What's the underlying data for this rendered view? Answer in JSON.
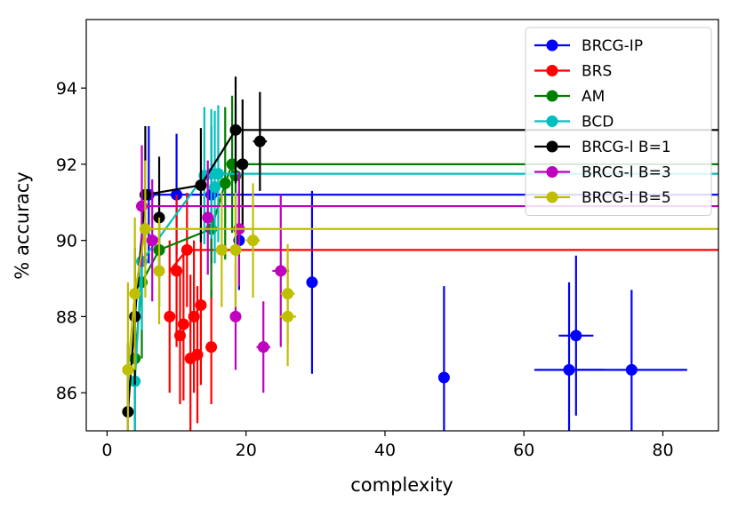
{
  "chart_data": {
    "type": "scatter",
    "xlabel": "complexity",
    "ylabel": "% accuracy",
    "xlim": [
      -3,
      88
    ],
    "ylim": [
      85,
      95.8
    ],
    "xticks": [
      0,
      20,
      40,
      60,
      80
    ],
    "yticks": [
      86,
      88,
      90,
      92,
      94
    ],
    "legend_position": "top-right",
    "series": [
      {
        "name": "BRCG-IP",
        "color": "#0000ff",
        "front": [
          [
            6,
            91.2
          ],
          [
            10,
            91.2
          ],
          [
            15,
            91.2
          ]
        ],
        "points": [
          {
            "x": 6.0,
            "y": 91.2,
            "xerr": 0.5,
            "yerr": 1.8
          },
          {
            "x": 10.0,
            "y": 91.2,
            "xerr": 0.8,
            "yerr": 1.6
          },
          {
            "x": 15.0,
            "y": 91.2,
            "xerr": 0.8,
            "yerr": 1.8
          },
          {
            "x": 19.0,
            "y": 90.0,
            "xerr": 0.5,
            "yerr": 1.3
          },
          {
            "x": 29.5,
            "y": 88.9,
            "xerr": 0.8,
            "yerr": 2.4
          },
          {
            "x": 48.5,
            "y": 86.4,
            "xerr": 0.8,
            "yerr": 2.4
          },
          {
            "x": 66.5,
            "y": 86.6,
            "xerr": 5.0,
            "yerr": 2.3
          },
          {
            "x": 67.5,
            "y": 87.5,
            "xerr": 2.5,
            "yerr": 2.1
          },
          {
            "x": 75.5,
            "y": 86.6,
            "xerr": 8.0,
            "yerr": 2.1
          }
        ]
      },
      {
        "name": "BRS",
        "color": "#ff0000",
        "front": [
          [
            9,
            89.2
          ],
          [
            11.5,
            89.75
          ]
        ],
        "points": [
          {
            "x": 9.0,
            "y": 88.0,
            "xerr": 0.5,
            "yerr": 2.0
          },
          {
            "x": 10.0,
            "y": 89.2,
            "xerr": 0.5,
            "yerr": 2.0
          },
          {
            "x": 10.5,
            "y": 87.5,
            "xerr": 0.5,
            "yerr": 1.8
          },
          {
            "x": 11.0,
            "y": 87.8,
            "xerr": 0.5,
            "yerr": 2.0
          },
          {
            "x": 11.5,
            "y": 89.75,
            "xerr": 0.8,
            "yerr": 1.5
          },
          {
            "x": 12.0,
            "y": 86.9,
            "xerr": 0.5,
            "yerr": 2.2
          },
          {
            "x": 12.5,
            "y": 88.0,
            "xerr": 0.5,
            "yerr": 2.0
          },
          {
            "x": 13.0,
            "y": 87.0,
            "xerr": 0.5,
            "yerr": 1.8
          },
          {
            "x": 13.5,
            "y": 88.3,
            "xerr": 0.5,
            "yerr": 2.1
          },
          {
            "x": 15.0,
            "y": 87.2,
            "xerr": 0.5,
            "yerr": 1.5
          }
        ]
      },
      {
        "name": "AM",
        "color": "#008000",
        "front": [
          [
            4.0,
            86.9
          ],
          [
            5.0,
            88.9
          ],
          [
            7.5,
            89.75
          ],
          [
            15.0,
            90.3
          ],
          [
            17.0,
            91.5
          ],
          [
            18.0,
            92.0
          ]
        ],
        "points": [
          {
            "x": 4.0,
            "y": 86.9,
            "xerr": 0.5,
            "yerr": 2.0
          },
          {
            "x": 5.0,
            "y": 88.9,
            "xerr": 0.5,
            "yerr": 2.0
          },
          {
            "x": 7.5,
            "y": 89.75,
            "xerr": 0.8,
            "yerr": 1.5
          },
          {
            "x": 15.0,
            "y": 90.3,
            "xerr": 0.8,
            "yerr": 1.8
          },
          {
            "x": 17.0,
            "y": 91.5,
            "xerr": 0.8,
            "yerr": 2.0
          },
          {
            "x": 18.0,
            "y": 92.0,
            "xerr": 0.8,
            "yerr": 1.8
          },
          {
            "x": 18.5,
            "y": 91.7,
            "xerr": 0.8,
            "yerr": 1.9
          }
        ]
      },
      {
        "name": "BCD",
        "color": "#00bfbf",
        "front": [
          [
            4.0,
            86.3
          ],
          [
            5.0,
            89.45
          ],
          [
            14.0,
            91.7
          ],
          [
            15.0,
            91.75
          ],
          [
            16.0,
            91.75
          ]
        ],
        "points": [
          {
            "x": 4.0,
            "y": 86.3,
            "xerr": 0.5,
            "yerr": 2.0
          },
          {
            "x": 5.0,
            "y": 89.45,
            "xerr": 0.5,
            "yerr": 1.8
          },
          {
            "x": 14.0,
            "y": 91.7,
            "xerr": 0.8,
            "yerr": 1.8
          },
          {
            "x": 15.0,
            "y": 91.75,
            "xerr": 0.8,
            "yerr": 1.7
          },
          {
            "x": 15.5,
            "y": 91.4,
            "xerr": 0.8,
            "yerr": 2.0
          },
          {
            "x": 16.0,
            "y": 91.75,
            "xerr": 0.8,
            "yerr": 1.8
          }
        ]
      },
      {
        "name": "BRCG-l B=1",
        "color": "#000000",
        "front": [
          [
            3.0,
            85.5
          ],
          [
            4.0,
            88.0
          ],
          [
            5.5,
            91.2
          ],
          [
            13.5,
            91.45
          ],
          [
            18.5,
            92.9
          ]
        ],
        "points": [
          {
            "x": 3.0,
            "y": 85.5,
            "xerr": 0.5,
            "yerr": 1.8
          },
          {
            "x": 4.0,
            "y": 88.0,
            "xerr": 0.5,
            "yerr": 1.8
          },
          {
            "x": 5.5,
            "y": 91.2,
            "xerr": 0.5,
            "yerr": 1.8
          },
          {
            "x": 7.5,
            "y": 90.6,
            "xerr": 0.6,
            "yerr": 1.6
          },
          {
            "x": 13.5,
            "y": 91.45,
            "xerr": 0.8,
            "yerr": 1.5
          },
          {
            "x": 18.5,
            "y": 92.9,
            "xerr": 0.8,
            "yerr": 1.4
          },
          {
            "x": 19.5,
            "y": 92.0,
            "xerr": 0.8,
            "yerr": 1.7
          },
          {
            "x": 22.0,
            "y": 92.6,
            "xerr": 1.0,
            "yerr": 1.3
          }
        ]
      },
      {
        "name": "BRCG-l B=3",
        "color": "#bf00bf",
        "front": [
          [
            5.0,
            90.9
          ]
        ],
        "points": [
          {
            "x": 5.0,
            "y": 90.9,
            "xerr": 0.5,
            "yerr": 1.6
          },
          {
            "x": 6.5,
            "y": 90.0,
            "xerr": 0.5,
            "yerr": 1.6
          },
          {
            "x": 14.5,
            "y": 90.6,
            "xerr": 0.8,
            "yerr": 1.5
          },
          {
            "x": 18.5,
            "y": 88.0,
            "xerr": 0.8,
            "yerr": 1.4
          },
          {
            "x": 19.0,
            "y": 90.3,
            "xerr": 0.8,
            "yerr": 1.5
          },
          {
            "x": 22.5,
            "y": 87.2,
            "xerr": 1.0,
            "yerr": 1.2
          },
          {
            "x": 25.0,
            "y": 89.2,
            "xerr": 1.2,
            "yerr": 2.0
          }
        ]
      },
      {
        "name": "BRCG-l B=5",
        "color": "#bfbf00",
        "front": [
          [
            3.0,
            86.6
          ],
          [
            4.0,
            88.6
          ],
          [
            5.5,
            90.3
          ]
        ],
        "points": [
          {
            "x": 3.0,
            "y": 86.6,
            "xerr": 0.5,
            "yerr": 2.3
          },
          {
            "x": 4.0,
            "y": 88.6,
            "xerr": 0.5,
            "yerr": 2.0
          },
          {
            "x": 5.5,
            "y": 90.3,
            "xerr": 0.5,
            "yerr": 1.8
          },
          {
            "x": 7.5,
            "y": 89.2,
            "xerr": 0.6,
            "yerr": 1.4
          },
          {
            "x": 16.5,
            "y": 89.75,
            "xerr": 0.8,
            "yerr": 1.5
          },
          {
            "x": 18.5,
            "y": 89.75,
            "xerr": 0.8,
            "yerr": 1.5
          },
          {
            "x": 21.0,
            "y": 90.0,
            "xerr": 1.0,
            "yerr": 1.5
          },
          {
            "x": 26.0,
            "y": 88.6,
            "xerr": 1.0,
            "yerr": 1.3
          },
          {
            "x": 26.0,
            "y": 88.0,
            "xerr": 1.2,
            "yerr": 1.3
          }
        ]
      }
    ]
  }
}
